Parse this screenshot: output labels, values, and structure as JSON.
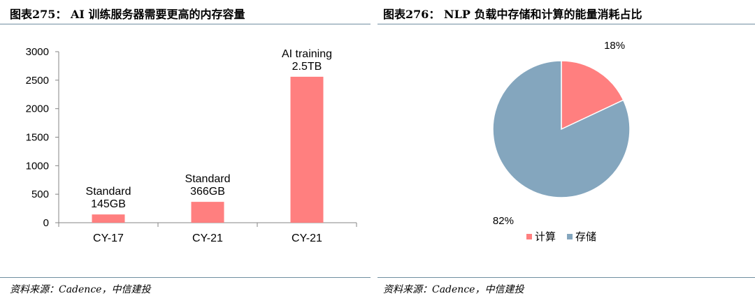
{
  "left": {
    "title": "图表275： AI 训练服务器需要更高的内存容量",
    "source": "资料来源：Cadence，中信建投"
  },
  "right": {
    "title": "图表276： NLP 负载中存储和计算的能量消耗占比",
    "source": "资料来源：Cadence，中信建投"
  },
  "chart_data": [
    {
      "type": "bar",
      "categories": [
        "CY-17",
        "CY-21",
        "CY-21"
      ],
      "values": [
        145,
        366,
        2560
      ],
      "data_labels": [
        [
          "Standard",
          "145GB"
        ],
        [
          "Standard",
          "366GB"
        ],
        [
          "AI training",
          "2.5TB"
        ]
      ],
      "yticks": [
        0,
        500,
        1000,
        1500,
        2000,
        2500,
        3000
      ],
      "ylim": [
        0,
        3000
      ],
      "colors": {
        "bar": "#ff7f7f",
        "axis": "#868686"
      },
      "grid": false
    },
    {
      "type": "pie",
      "slices": [
        {
          "label": "计算",
          "value": 18,
          "display": "18%",
          "color": "#ff7f7f"
        },
        {
          "label": "存储",
          "value": 82,
          "display": "82%",
          "color": "#84a6be"
        }
      ],
      "legend_position": "bottom"
    }
  ]
}
